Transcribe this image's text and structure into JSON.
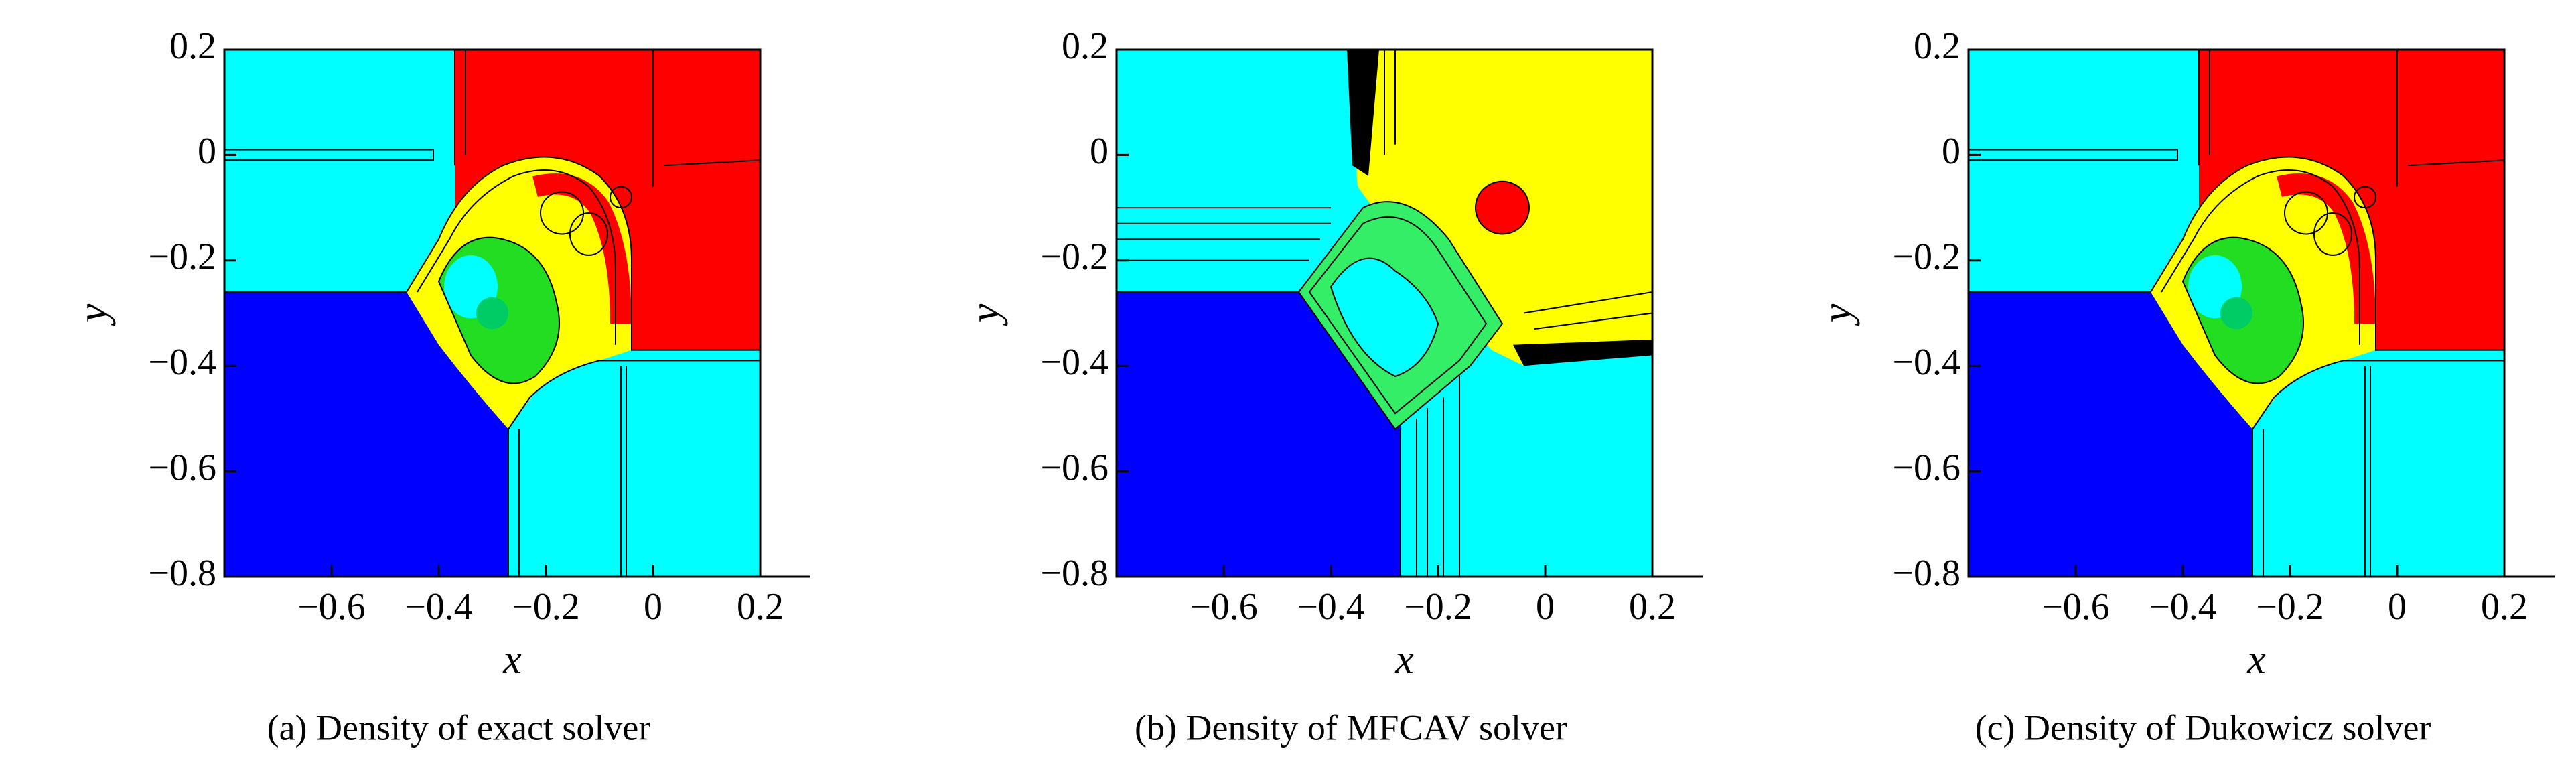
{
  "chart_data": [
    {
      "type": "contour",
      "caption": "(a) Density of exact solver",
      "x_label": "x",
      "y_label": "y",
      "xlim": [
        -0.8,
        0.2
      ],
      "ylim": [
        -0.8,
        0.2
      ],
      "xticks": [
        {
          "value": -0.6,
          "label": "−0.6"
        },
        {
          "value": -0.4,
          "label": "−0.4"
        },
        {
          "value": -0.2,
          "label": "−0.2"
        },
        0,
        0.2
      ],
      "yticks": [
        {
          "value": -0.8,
          "label": "−0.8"
        },
        {
          "value": -0.6,
          "label": "−0.6"
        },
        {
          "value": -0.4,
          "label": "−0.4"
        },
        {
          "value": -0.2,
          "label": "−0.2"
        },
        0,
        0.2
      ]
    },
    {
      "type": "contour",
      "caption": "(b) Density of MFCAV solver",
      "x_label": "x",
      "y_label": "y",
      "xlim": [
        -0.8,
        0.2
      ],
      "ylim": [
        -0.8,
        0.2
      ],
      "xticks": [
        {
          "value": -0.6,
          "label": "−0.6"
        },
        {
          "value": -0.4,
          "label": "−0.4"
        },
        {
          "value": -0.2,
          "label": "−0.2"
        },
        0,
        0.2
      ],
      "yticks": [
        {
          "value": -0.8,
          "label": "−0.8"
        },
        {
          "value": -0.6,
          "label": "−0.6"
        },
        {
          "value": -0.4,
          "label": "−0.4"
        },
        {
          "value": -0.2,
          "label": "−0.2"
        },
        0,
        0.2
      ]
    },
    {
      "type": "contour",
      "caption": "(c) Density of Dukowicz solver",
      "x_label": "x",
      "y_label": "y",
      "xlim": [
        -0.8,
        0.2
      ],
      "ylim": [
        -0.8,
        0.2
      ],
      "xticks": [
        {
          "value": -0.6,
          "label": "−0.6"
        },
        {
          "value": -0.4,
          "label": "−0.4"
        },
        {
          "value": -0.2,
          "label": "−0.2"
        },
        0,
        0.2
      ],
      "yticks": [
        {
          "value": -0.8,
          "label": "−0.8"
        },
        {
          "value": -0.6,
          "label": "−0.6"
        },
        {
          "value": -0.4,
          "label": "−0.4"
        },
        {
          "value": -0.2,
          "label": "−0.2"
        },
        0,
        0.2
      ]
    }
  ]
}
